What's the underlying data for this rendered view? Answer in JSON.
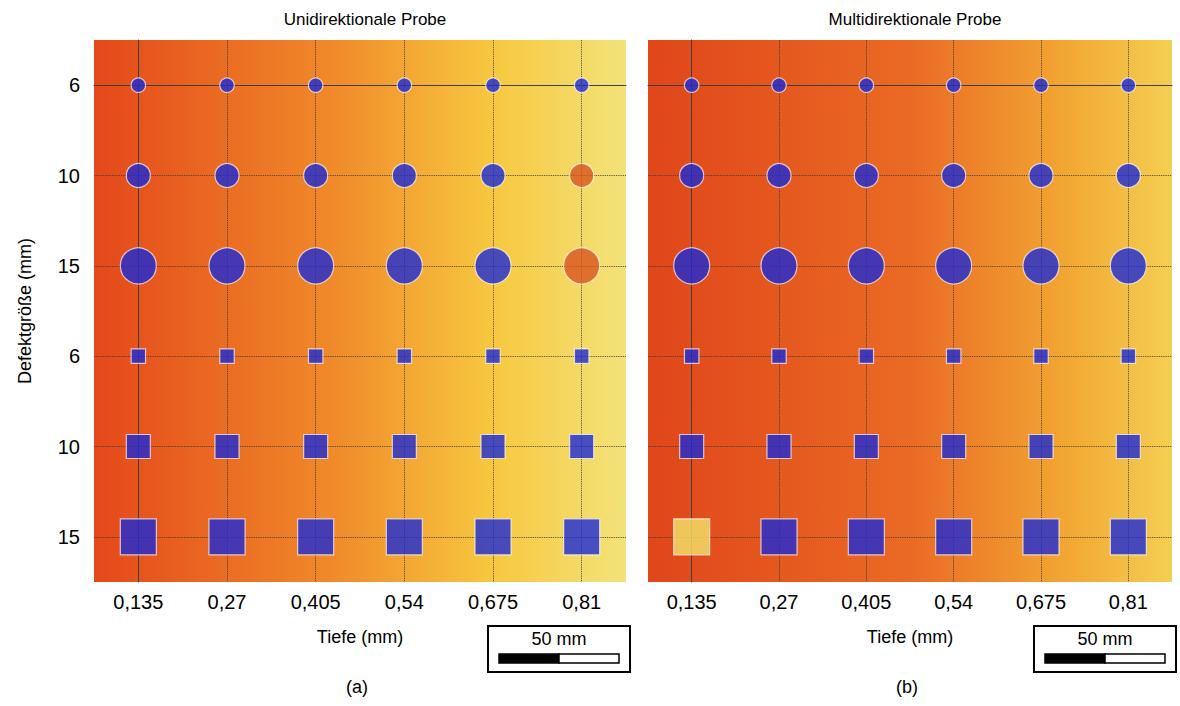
{
  "chart_data": [
    {
      "type": "scatter",
      "title": "Unidirektionale Probe",
      "panel_label": "(a)",
      "x_label": "Tiefe (mm)",
      "y_label": "Defektgröße (mm)",
      "categories": [
        "0,135",
        "0,27",
        "0,405",
        "0,54",
        "0,675",
        "0,81"
      ],
      "rows": [
        {
          "size": 6,
          "marker": "circle",
          "colors": [
            "#1b2bd6",
            "#1b2bd6",
            "#1b2bd6",
            "#1b2bd6",
            "#1b2bd6",
            "#1b2bd6"
          ]
        },
        {
          "size": 10,
          "marker": "circle",
          "colors": [
            "#1b2bd6",
            "#1b2bd6",
            "#1b2bd6",
            "#1b2bd6",
            "#1b2bd6",
            "#d9541e"
          ]
        },
        {
          "size": 15,
          "marker": "circle",
          "colors": [
            "#1b2bd6",
            "#1b2bd6",
            "#1b2bd6",
            "#1b2bd6",
            "#1b2bd6",
            "#d9541e"
          ]
        },
        {
          "size": 6,
          "marker": "square",
          "colors": [
            "#1b2bd6",
            "#1b2bd6",
            "#1b2bd6",
            "#1b2bd6",
            "#1b2bd6",
            "#1b2bd6"
          ]
        },
        {
          "size": 10,
          "marker": "square",
          "colors": [
            "#1b2bd6",
            "#1b2bd6",
            "#1b2bd6",
            "#1b2bd6",
            "#1b2bd6",
            "#1b2bd6"
          ]
        },
        {
          "size": 15,
          "marker": "square",
          "colors": [
            "#1b2bd6",
            "#1b2bd6",
            "#1b2bd6",
            "#1b2bd6",
            "#1b2bd6",
            "#1b2bd6"
          ]
        }
      ],
      "scale_bar": {
        "value": 50,
        "label": "50 mm"
      },
      "grid": true,
      "tick_labels": true
    },
    {
      "type": "scatter",
      "title": "Multidirektionale Probe",
      "panel_label": "(b)",
      "x_label": "Tiefe (mm)",
      "categories": [
        "0,135",
        "0,27",
        "0,405",
        "0,54",
        "0,675",
        "0,81"
      ],
      "rows": [
        {
          "size": 6,
          "marker": "circle",
          "colors": [
            "#1b2bd6",
            "#1b2bd6",
            "#1b2bd6",
            "#1b2bd6",
            "#1b2bd6",
            "#1b2bd6"
          ]
        },
        {
          "size": 10,
          "marker": "circle",
          "colors": [
            "#1b2bd6",
            "#1b2bd6",
            "#1b2bd6",
            "#1b2bd6",
            "#1b2bd6",
            "#1b2bd6"
          ]
        },
        {
          "size": 15,
          "marker": "circle",
          "colors": [
            "#1b2bd6",
            "#1b2bd6",
            "#1b2bd6",
            "#1b2bd6",
            "#1b2bd6",
            "#1b2bd6"
          ]
        },
        {
          "size": 6,
          "marker": "square",
          "colors": [
            "#1b2bd6",
            "#1b2bd6",
            "#1b2bd6",
            "#1b2bd6",
            "#1b2bd6",
            "#1b2bd6"
          ]
        },
        {
          "size": 10,
          "marker": "square",
          "colors": [
            "#1b2bd6",
            "#1b2bd6",
            "#1b2bd6",
            "#1b2bd6",
            "#1b2bd6",
            "#1b2bd6"
          ]
        },
        {
          "size": 15,
          "marker": "square",
          "colors": [
            "#f4e36a",
            "#1b2bd6",
            "#1b2bd6",
            "#1b2bd6",
            "#1b2bd6",
            "#1b2bd6"
          ]
        }
      ],
      "scale_bar": {
        "value": 50,
        "label": "50 mm"
      },
      "grid": true,
      "tick_labels": "x"
    }
  ]
}
